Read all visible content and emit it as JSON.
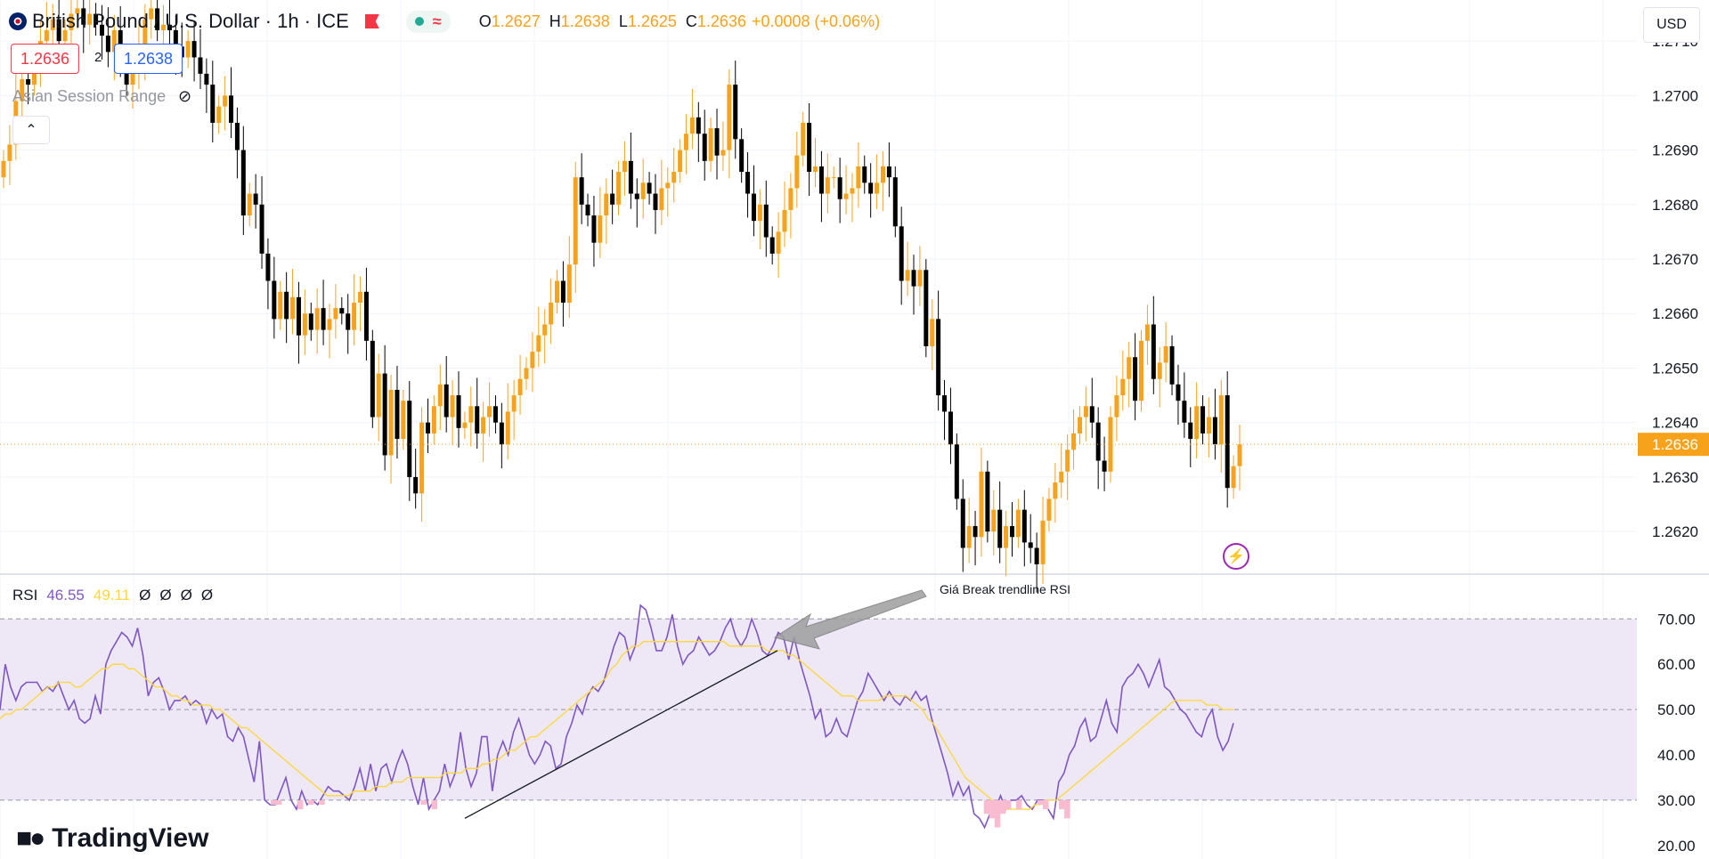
{
  "header": {
    "symbol": "British Pound / U.S. Dollar · 1h · ICE",
    "o_label": "O",
    "o_value": "1.2627",
    "h_label": "H",
    "h_value": "1.2638",
    "l_label": "L",
    "l_value": "1.2625",
    "c_label": "C",
    "c_value": "1.2636",
    "change": "+0.0008 (+0.06%)",
    "bid": "1.2636",
    "spread": "2",
    "ask": "1.2638",
    "indicator": "Asian Session Range",
    "currency": "USD"
  },
  "rsi_legend": {
    "name": "RSI",
    "rsi": "46.55",
    "ma": "49.11",
    "empties": [
      "Ø",
      "Ø",
      "Ø",
      "Ø"
    ]
  },
  "annotation": "Giá Break trendline RSI",
  "logo": "TradingView",
  "colors": {
    "up": "#f7a21b",
    "down": "#000000",
    "rsi": "#7e57c2",
    "rsi_ma": "#fdd835",
    "band": "#ede7f6",
    "last_price": "#f7a21b"
  },
  "chart_data": [
    {
      "type": "candlestick",
      "last_price": 1.2636,
      "last_price_label": "1.2636",
      "ylim": [
        1.2613,
        1.2711
      ],
      "y_ticks": [
        "1.2710",
        "1.2700",
        "1.2690",
        "1.2680",
        "1.2670",
        "1.2660",
        "1.2650",
        "1.2640",
        "1.2630",
        "1.2620"
      ],
      "y_tick_values": [
        1.271,
        1.27,
        1.269,
        1.268,
        1.267,
        1.266,
        1.265,
        1.264,
        1.263,
        1.262
      ],
      "closes": [
        1.2688,
        1.2691,
        1.2699,
        1.2703,
        1.2702,
        1.2706,
        1.271,
        1.2712,
        1.2714,
        1.271,
        1.2712,
        1.2715,
        1.2716,
        1.2713,
        1.2715,
        1.2713,
        1.2711,
        1.2708,
        1.2712,
        1.2707,
        1.2702,
        1.2704,
        1.2708,
        1.2714,
        1.2716,
        1.2712,
        1.2713,
        1.2712,
        1.2709,
        1.2707,
        1.271,
        1.2707,
        1.2704,
        1.2702,
        1.2695,
        1.2698,
        1.27,
        1.2695,
        1.269,
        1.2678,
        1.2682,
        1.268,
        1.2671,
        1.2666,
        1.2659,
        1.2664,
        1.2659,
        1.2663,
        1.2656,
        1.266,
        1.2657,
        1.2661,
        1.2657,
        1.2659,
        1.2661,
        1.266,
        1.2657,
        1.2662,
        1.2664,
        1.2655,
        1.2641,
        1.2649,
        1.2634,
        1.2646,
        1.2637,
        1.2644,
        1.263,
        1.2627,
        1.264,
        1.2638,
        1.2643,
        1.2647,
        1.2641,
        1.2645,
        1.2639,
        1.264,
        1.2643,
        1.2638,
        1.2641,
        1.2643,
        1.264,
        1.2636,
        1.2642,
        1.2645,
        1.2648,
        1.265,
        1.2653,
        1.2656,
        1.2658,
        1.2662,
        1.2666,
        1.2662,
        1.2669,
        1.2685,
        1.268,
        1.2678,
        1.2673,
        1.2678,
        1.2682,
        1.268,
        1.2686,
        1.2688,
        1.2682,
        1.2681,
        1.2684,
        1.2682,
        1.2679,
        1.2683,
        1.2684,
        1.2686,
        1.269,
        1.2693,
        1.2696,
        1.2693,
        1.2688,
        1.2694,
        1.2689,
        1.269,
        1.2702,
        1.2692,
        1.2686,
        1.2682,
        1.2677,
        1.268,
        1.2674,
        1.2671,
        1.2675,
        1.2679,
        1.2683,
        1.2689,
        1.2695,
        1.2686,
        1.2687,
        1.2682,
        1.2685,
        1.2685,
        1.2681,
        1.2682,
        1.2683,
        1.2687,
        1.2684,
        1.2682,
        1.2684,
        1.2687,
        1.2685,
        1.2676,
        1.2666,
        1.2668,
        1.2665,
        1.2668,
        1.2654,
        1.2659,
        1.2645,
        1.2642,
        1.2636,
        1.2626,
        1.2617,
        1.2621,
        1.2619,
        1.2631,
        1.262,
        1.2624,
        1.2617,
        1.2621,
        1.2619,
        1.2624,
        1.2618,
        1.2617,
        1.2614,
        1.2622,
        1.2626,
        1.2629,
        1.2631,
        1.2635,
        1.2638,
        1.2641,
        1.2643,
        1.264,
        1.2633,
        1.2631,
        1.2641,
        1.2645,
        1.2648,
        1.2652,
        1.2644,
        1.2655,
        1.2658,
        1.2648,
        1.2651,
        1.2654,
        1.2647,
        1.2644,
        1.264,
        1.2637,
        1.2643,
        1.2638,
        1.2641,
        1.2636,
        1.2645,
        1.2628,
        1.2632,
        1.2636
      ]
    },
    {
      "type": "line",
      "title": "RSI",
      "ylim": [
        18,
        73
      ],
      "y_ticks": [
        "70.00",
        "60.00",
        "50.00",
        "40.00",
        "30.00",
        "20.00"
      ],
      "y_tick_values": [
        70,
        60,
        50,
        40,
        30,
        20
      ],
      "band": [
        30,
        70
      ],
      "midline": 50,
      "series": [
        {
          "name": "RSI",
          "values": [
            50,
            60,
            55,
            52,
            55,
            56,
            56,
            56,
            54,
            55,
            54,
            56,
            53,
            50,
            52,
            48,
            47,
            48,
            53,
            49,
            60,
            63,
            65,
            67,
            66,
            64,
            68,
            62,
            53,
            56,
            57,
            54,
            50,
            52,
            52,
            53,
            51,
            52,
            51,
            47,
            50,
            48,
            49,
            44,
            43,
            46,
            44,
            39,
            34,
            43,
            30,
            29,
            29,
            32,
            35,
            30,
            28,
            32,
            29,
            30,
            29,
            31,
            33,
            32,
            32,
            31,
            30,
            33,
            37,
            32,
            38,
            32,
            37,
            38,
            34,
            38,
            41,
            38,
            33,
            29,
            35,
            28,
            30,
            32,
            38,
            33,
            36,
            45,
            37,
            33,
            36,
            44,
            44,
            32,
            40,
            43,
            40,
            45,
            48,
            44,
            40,
            38,
            40,
            43,
            42,
            37,
            38,
            44,
            47,
            51,
            49,
            53,
            55,
            54,
            56,
            60,
            64,
            67,
            66,
            61,
            64,
            73,
            72,
            68,
            63,
            63,
            66,
            71,
            64,
            60,
            62,
            63,
            66,
            64,
            62,
            63,
            65,
            68,
            70,
            66,
            64,
            66,
            70,
            67,
            63,
            62,
            64,
            67,
            66,
            61,
            66,
            61,
            57,
            53,
            48,
            50,
            44,
            45,
            48,
            45,
            44,
            48,
            52,
            54,
            58,
            56,
            54,
            52,
            54,
            52,
            51,
            53,
            52,
            54,
            52,
            53,
            48,
            44,
            40,
            36,
            31,
            34,
            31,
            33,
            27,
            26,
            24,
            27,
            28,
            31,
            28,
            30,
            30,
            31,
            29,
            28,
            30,
            30,
            28,
            26,
            34,
            36,
            40,
            42,
            46,
            48,
            43,
            44,
            48,
            52,
            47,
            45,
            55,
            57,
            58,
            60,
            58,
            55,
            58,
            61,
            55,
            54,
            52,
            50,
            49,
            47,
            45,
            44,
            48,
            50,
            44,
            41,
            43,
            47
          ]
        },
        {
          "name": "MA",
          "values": [
            48,
            49,
            49,
            50,
            50,
            51,
            52,
            53,
            54,
            55,
            55,
            56,
            56,
            56,
            55,
            55,
            56,
            57,
            58,
            59,
            59,
            60,
            60,
            60,
            59,
            59,
            58,
            57,
            56,
            55,
            55,
            54,
            53,
            53,
            52,
            52,
            51,
            51,
            51,
            51,
            50,
            50,
            49,
            48,
            47,
            46,
            46,
            45,
            44,
            43,
            42,
            41,
            40,
            39,
            38,
            37,
            36,
            35,
            34,
            33,
            32,
            31,
            31,
            31,
            31,
            31,
            32,
            32,
            32,
            32,
            33,
            33,
            33,
            34,
            34,
            34,
            35,
            35,
            35,
            35,
            35,
            35,
            35,
            36,
            36,
            36,
            36,
            37,
            37,
            37,
            38,
            38,
            39,
            39,
            40,
            41,
            41,
            42,
            43,
            44,
            44,
            45,
            46,
            47,
            48,
            49,
            50,
            51,
            52,
            53,
            54,
            55,
            56,
            57,
            59,
            60,
            62,
            63,
            64,
            64,
            65,
            65,
            65,
            65,
            65,
            65,
            65,
            65,
            65,
            65,
            65,
            65,
            65,
            65,
            65,
            65,
            64,
            64,
            64,
            64,
            64,
            64,
            64,
            63,
            63,
            63,
            63,
            62,
            62,
            61,
            60,
            59,
            58,
            57,
            56,
            55,
            54,
            53,
            53,
            53,
            52,
            52,
            52,
            52,
            52,
            53,
            53,
            53,
            53,
            53,
            52,
            51,
            50,
            48,
            47,
            45,
            43,
            41,
            39,
            37,
            35,
            34,
            33,
            32,
            31,
            30,
            29,
            28,
            28,
            28,
            28,
            28,
            28,
            29,
            29,
            30,
            30,
            30,
            31,
            32,
            33,
            34,
            35,
            36,
            37,
            38,
            39,
            40,
            41,
            42,
            43,
            44,
            45,
            46,
            47,
            48,
            49,
            50,
            51,
            52,
            52,
            52,
            52,
            52,
            52,
            51,
            51,
            51,
            50,
            50,
            50
          ]
        }
      ],
      "trendline": {
        "from": [
          421,
          26
        ],
        "to": [
          605,
          63
        ]
      }
    }
  ]
}
